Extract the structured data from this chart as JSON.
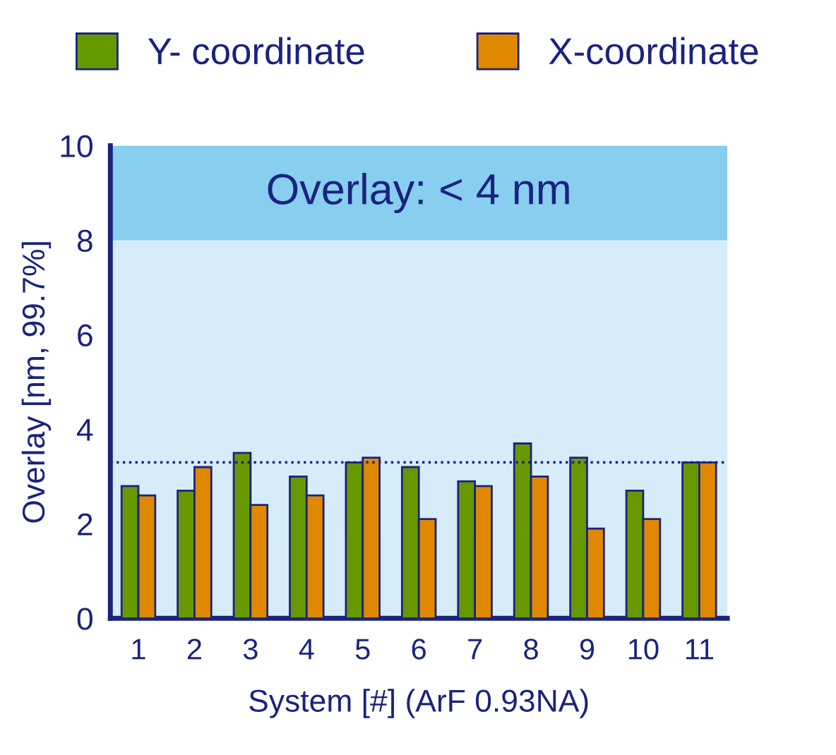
{
  "chart_data": {
    "type": "bar",
    "xlabel": "System [#] (ArF 0.93NA)",
    "ylabel": "Overlay [nm, 99.7%]",
    "categories": [
      "1",
      "2",
      "3",
      "4",
      "5",
      "6",
      "7",
      "8",
      "9",
      "10",
      "11"
    ],
    "series": [
      {
        "name": "Y- coordinate",
        "color": "#669900",
        "values": [
          2.8,
          2.7,
          3.5,
          3.0,
          3.3,
          3.2,
          2.9,
          3.7,
          3.4,
          2.7,
          3.3
        ]
      },
      {
        "name": "X-coordinate",
        "color": "#e08800",
        "values": [
          2.6,
          3.2,
          2.4,
          2.6,
          3.4,
          2.1,
          2.8,
          3.0,
          1.9,
          2.1,
          3.3
        ]
      }
    ],
    "ylim": [
      0,
      10
    ],
    "yticks": [
      0,
      2,
      4,
      6,
      8,
      10
    ],
    "grid": false,
    "legend": "top",
    "ref_lines": [
      {
        "axis": "y",
        "value": 3.3,
        "label": null,
        "color": "#1a237e",
        "line_style": "dotted"
      }
    ],
    "bands": [
      {
        "axis": "y",
        "from": 8,
        "to": 10,
        "label": "Overlay: < 4 nm",
        "color": "#87ceef"
      }
    ]
  }
}
